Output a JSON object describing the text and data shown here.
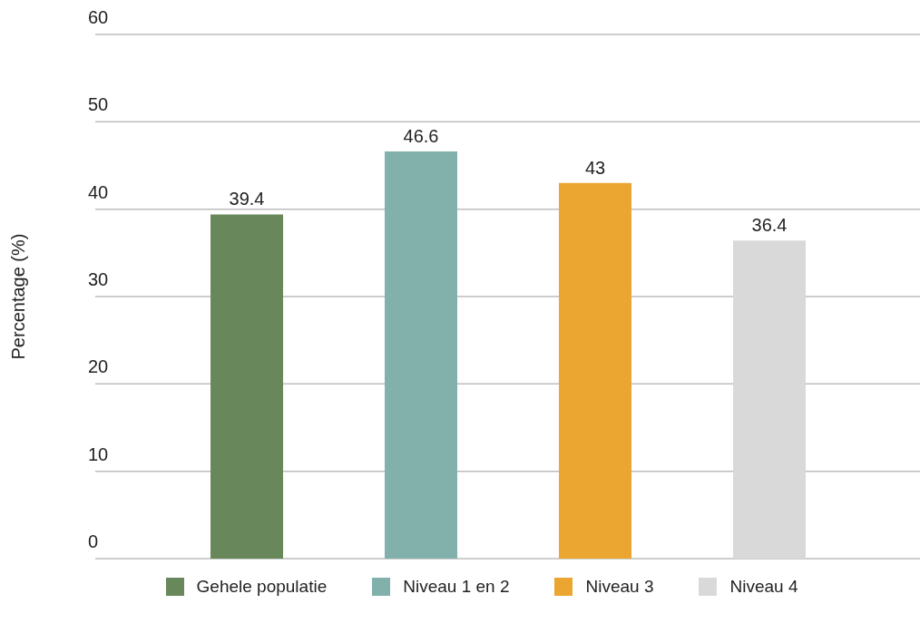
{
  "chart_data": {
    "type": "bar",
    "ylabel": "Percentage (%)",
    "categories": [
      null
    ],
    "series": [
      {
        "name": "Gehele populatie",
        "color": "#68885b",
        "values": [
          39.4
        ]
      },
      {
        "name": "Niveau 1 en 2",
        "color": "#82b1ab",
        "values": [
          46.6
        ]
      },
      {
        "name": "Niveau 3",
        "color": "#eba632",
        "values": [
          43
        ]
      },
      {
        "name": "Niveau 4",
        "color": "#d9d9d9",
        "values": [
          36.4
        ]
      }
    ],
    "ylim": [
      0,
      60
    ],
    "yticks": [
      0,
      10,
      20,
      30,
      40,
      50,
      60
    ],
    "grid": "y",
    "legend": "bottom",
    "data_labels": true
  }
}
